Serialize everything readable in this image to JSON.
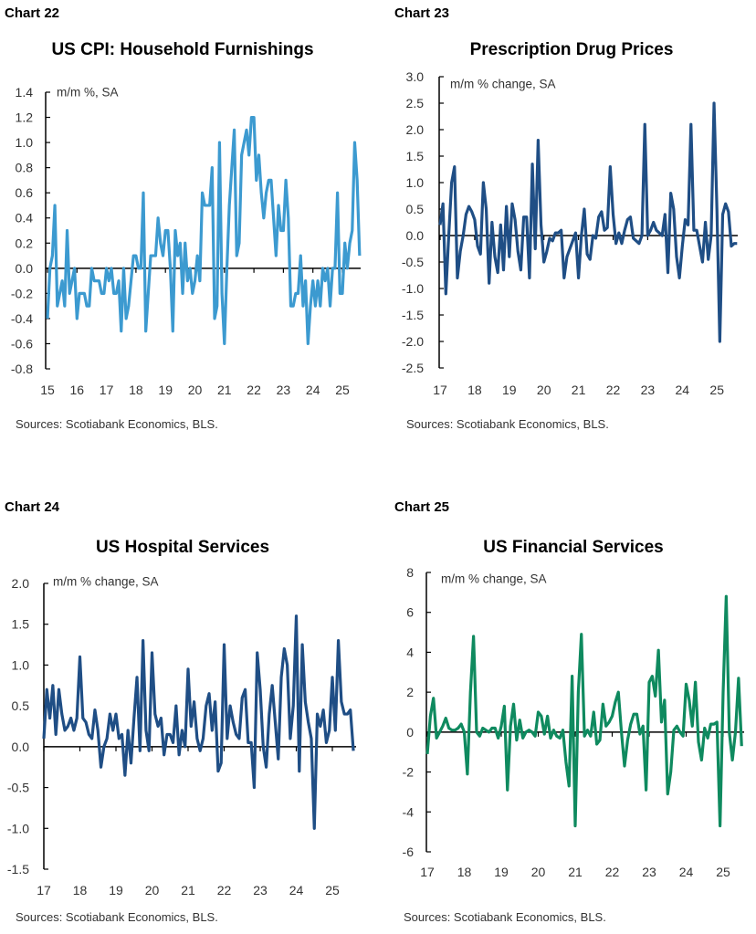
{
  "chart_data": [
    {
      "label": "Chart 22",
      "type": "line",
      "title": "US CPI: Household Furnishings",
      "ylabel": "m/m %, SA",
      "source": "Sources: Scotiabank Economics, BLS.",
      "color": "#3c9ad0",
      "ylim": [
        -0.8,
        1.4
      ],
      "yticks": [
        "1.4",
        "1.2",
        "1.0",
        "0.8",
        "0.6",
        "0.4",
        "0.2",
        "0.0",
        "-0.2",
        "-0.4",
        "-0.6",
        "-0.8"
      ],
      "xticks": [
        "15",
        "16",
        "17",
        "18",
        "19",
        "20",
        "21",
        "22",
        "23",
        "24",
        "25"
      ],
      "grid": false,
      "monthly_values_by_year": {
        "2015": [
          -0.4,
          0.0,
          0.1,
          0.5,
          -0.3,
          -0.2,
          -0.1,
          -0.3,
          0.3,
          -0.2,
          -0.1,
          0.0
        ],
        "2016": [
          -0.4,
          -0.2,
          -0.2,
          -0.2,
          -0.3,
          -0.3,
          0.0,
          -0.1,
          -0.1,
          -0.1,
          -0.2,
          -0.2
        ],
        "2017": [
          0.0,
          -0.1,
          0.0,
          -0.2,
          -0.2,
          -0.1,
          -0.5,
          0.0,
          -0.4,
          -0.3,
          -0.1,
          0.1
        ],
        "2018": [
          0.1,
          0.0,
          0.0,
          0.6,
          -0.5,
          -0.2,
          0.1,
          0.1,
          0.1,
          0.4,
          0.2,
          0.1
        ],
        "2019": [
          0.3,
          0.3,
          0.0,
          -0.5,
          0.3,
          0.1,
          0.2,
          -0.2,
          0.2,
          -0.1,
          0.0,
          -0.2
        ],
        "2020": [
          -0.1,
          0.1,
          -0.1,
          0.6,
          0.5,
          0.5,
          0.5,
          0.8,
          -0.4,
          -0.3,
          1.0,
          -0.2
        ],
        "2021": [
          -0.6,
          0.0,
          0.5,
          0.8,
          1.1,
          0.1,
          0.2,
          0.9,
          1.0,
          1.1,
          0.9,
          1.2
        ],
        "2022": [
          1.2,
          0.7,
          0.9,
          0.6,
          0.4,
          0.6,
          0.7,
          0.7,
          0.4,
          0.1,
          0.5,
          0.3
        ],
        "2023": [
          0.3,
          0.7,
          0.4,
          -0.3,
          -0.3,
          -0.2,
          -0.2,
          0.1,
          -0.3,
          -0.1,
          -0.6,
          -0.3
        ],
        "2024": [
          -0.1,
          -0.3,
          -0.1,
          -0.3,
          0.0,
          -0.1,
          0.0,
          -0.3,
          0.0,
          0.0,
          0.6,
          -0.2
        ],
        "2025": [
          -0.2,
          0.2,
          0.0,
          0.2,
          0.3,
          1.0,
          0.7,
          0.1
        ]
      }
    },
    {
      "label": "Chart 23",
      "type": "line",
      "title": "Prescription Drug Prices",
      "ylabel": "m/m % change, SA",
      "source": "Sources: Scotiabank Economics, BLS.",
      "color": "#1f4e85",
      "ylim": [
        -2.5,
        3.0
      ],
      "yticks": [
        "3.0",
        "2.5",
        "2.0",
        "1.5",
        "1.0",
        "0.5",
        "0.0",
        "-0.5",
        "-1.0",
        "-1.5",
        "-2.0",
        "-2.5"
      ],
      "xticks": [
        "17",
        "18",
        "19",
        "20",
        "21",
        "22",
        "23",
        "24",
        "25"
      ],
      "grid": false,
      "monthly_values_by_year": {
        "2017": [
          0.2,
          0.6,
          -1.1,
          0.0,
          1.0,
          1.3,
          -0.8,
          -0.3,
          0.0,
          0.4,
          0.55,
          0.45
        ],
        "2018": [
          0.3,
          -0.2,
          -0.35,
          1.0,
          0.5,
          -0.9,
          0.25,
          -0.4,
          -0.7,
          0.2,
          -0.65,
          0.55
        ],
        "2019": [
          -0.4,
          0.6,
          0.3,
          -0.3,
          -0.65,
          0.35,
          0.35,
          -0.8,
          1.35,
          -0.25,
          1.8,
          0.2
        ],
        "2020": [
          -0.5,
          -0.3,
          -0.05,
          -0.1,
          0.05,
          0.05,
          0.1,
          -0.8,
          -0.4,
          -0.25,
          -0.1,
          0.05
        ],
        "2021": [
          -0.8,
          0.0,
          0.5,
          -0.35,
          -0.45,
          0.0,
          -0.05,
          0.35,
          0.45,
          0.1,
          0.15,
          1.3
        ],
        "2022": [
          0.4,
          -0.15,
          0.05,
          -0.15,
          0.1,
          0.3,
          0.35,
          -0.05,
          -0.1,
          -0.15,
          0.0,
          2.1
        ],
        "2023": [
          0.0,
          0.1,
          0.25,
          0.1,
          0.05,
          0.0,
          0.4,
          -0.7,
          0.8,
          0.5,
          -0.4,
          -0.8
        ],
        "2024": [
          -0.2,
          0.3,
          0.2,
          2.1,
          0.1,
          0.1,
          -0.2,
          -0.5,
          0.25,
          -0.45,
          0.0,
          2.5
        ],
        "2025": [
          0.5,
          -2.0,
          0.4,
          0.6,
          0.45,
          -0.2,
          -0.15,
          -0.15
        ]
      }
    },
    {
      "label": "Chart 24",
      "type": "line",
      "title": "US Hospital Services",
      "ylabel": "m/m % change, SA",
      "source": "Sources: Scotiabank Economics, BLS.",
      "color": "#1f4e85",
      "ylim": [
        -1.5,
        2.0
      ],
      "yticks": [
        "2.0",
        "1.5",
        "1.0",
        "0.5",
        "0.0",
        "-0.5",
        "-1.0",
        "-1.5"
      ],
      "xticks": [
        "17",
        "18",
        "19",
        "20",
        "21",
        "22",
        "23",
        "24",
        "25"
      ],
      "grid": false,
      "monthly_values_by_year": {
        "2017": [
          0.1,
          0.7,
          0.35,
          0.75,
          0.15,
          0.7,
          0.4,
          0.2,
          0.25,
          0.35,
          0.2,
          0.35
        ],
        "2018": [
          1.1,
          0.35,
          0.3,
          0.15,
          0.1,
          0.45,
          0.2,
          -0.25,
          0.0,
          0.1,
          0.4,
          0.2
        ],
        "2019": [
          0.4,
          0.1,
          0.15,
          -0.35,
          0.2,
          -0.2,
          0.35,
          0.85,
          -0.05,
          1.3,
          0.2,
          -0.05
        ],
        "2020": [
          1.15,
          0.4,
          0.25,
          0.35,
          -0.1,
          0.15,
          0.15,
          0.05,
          0.5,
          -0.1,
          0.2,
          0.0
        ],
        "2021": [
          0.95,
          0.25,
          0.55,
          0.1,
          -0.05,
          0.1,
          0.5,
          0.65,
          0.2,
          0.55,
          -0.3,
          -0.2
        ],
        "2022": [
          1.25,
          0.1,
          0.5,
          0.3,
          0.15,
          0.1,
          0.6,
          0.7,
          0.05,
          0.05,
          -0.5,
          1.15
        ],
        "2023": [
          0.7,
          0.0,
          -0.25,
          0.4,
          0.75,
          0.3,
          -0.15,
          0.85,
          1.2,
          1.0,
          0.1,
          0.5
        ],
        "2024": [
          1.6,
          -0.3,
          1.25,
          0.55,
          0.3,
          0.1,
          -1.0,
          0.4,
          0.25,
          0.45,
          0.05,
          0.2
        ],
        "2025": [
          0.85,
          0.2,
          1.3,
          0.55,
          0.4,
          0.4,
          0.45,
          -0.05
        ]
      }
    },
    {
      "label": "Chart 25",
      "type": "line",
      "title": "US Financial Services",
      "ylabel": "m/m % change, SA",
      "source": "Sources: Scotiabank Economics, BLS.",
      "color": "#0f8a5f",
      "ylim": [
        -6,
        8
      ],
      "yticks": [
        "8",
        "6",
        "4",
        "2",
        "0",
        "-2",
        "-4",
        "-6"
      ],
      "xticks": [
        "17",
        "18",
        "19",
        "20",
        "21",
        "22",
        "23",
        "24",
        "25"
      ],
      "grid": false,
      "monthly_values_by_year": {
        "2017": [
          -1.1,
          0.8,
          1.7,
          -0.3,
          0.0,
          0.3,
          0.7,
          0.2,
          0.1,
          0.1,
          0.2,
          0.4
        ],
        "2018": [
          0.0,
          -2.1,
          2.0,
          4.8,
          0.0,
          -0.2,
          0.2,
          0.1,
          0.0,
          0.2,
          0.2,
          -0.3
        ],
        "2019": [
          0.3,
          1.3,
          -2.9,
          0.3,
          1.4,
          -0.4,
          0.6,
          -0.3,
          0.0,
          0.1,
          0.0,
          -0.2
        ],
        "2020": [
          1.0,
          0.8,
          -0.1,
          0.8,
          -0.3,
          0.1,
          -0.2,
          -0.3,
          0.1,
          -1.5,
          -2.7,
          2.8
        ],
        "2021": [
          -4.7,
          2.0,
          4.9,
          -0.2,
          0.1,
          -0.2,
          1.0,
          -0.6,
          -0.4,
          1.4,
          0.3,
          0.5
        ],
        "2022": [
          0.8,
          1.5,
          2.0,
          0.0,
          -1.7,
          -0.4,
          0.4,
          0.9,
          0.9,
          -0.1,
          0.3,
          -2.9
        ],
        "2023": [
          2.5,
          2.8,
          1.8,
          4.1,
          0.5,
          1.6,
          -3.1,
          -2.0,
          0.1,
          0.3,
          0.0,
          -0.2
        ],
        "2024": [
          2.4,
          1.6,
          0.3,
          2.5,
          -0.5,
          -1.4,
          0.2,
          -0.3,
          0.4,
          0.4,
          0.5,
          -4.7
        ],
        "2025": [
          2.0,
          6.8,
          0.0,
          -1.4,
          0.0,
          2.7,
          -0.7
        ]
      }
    }
  ]
}
